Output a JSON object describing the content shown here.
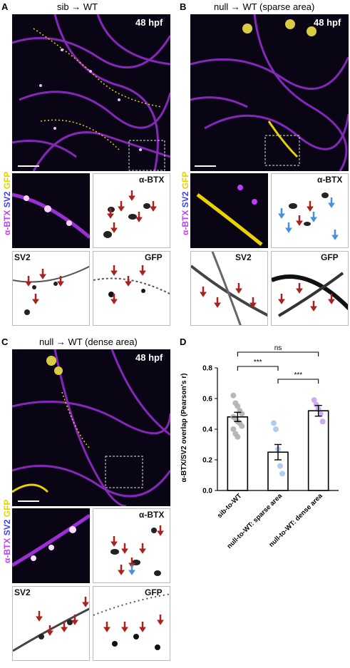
{
  "panels": {
    "A": {
      "letter": "A",
      "title": "sib → WT",
      "time": "48 hpf"
    },
    "B": {
      "letter": "B",
      "title": "null → WT (sparse area)",
      "time": "48 hpf"
    },
    "C": {
      "letter": "C",
      "title": "null → WT (dense area)",
      "time": "48 hpf"
    },
    "D": {
      "letter": "D"
    }
  },
  "stain": {
    "btx": "α-BTX",
    "sv2": "SV2",
    "gfp": "GFP"
  },
  "colors": {
    "btx": "#c13cff",
    "sv2": "#3a3aff",
    "gfp": "#e8d200",
    "red_arrow": "#a8231f",
    "blue_arrow": "#4a90d9"
  },
  "chart_data": {
    "type": "bar",
    "ylabel": "α-BTX/SV2 overlap (Pearson's r)",
    "ylim": [
      0,
      0.8
    ],
    "yticks": [
      "0.0",
      "0.2",
      "0.4",
      "0.6",
      "0.8"
    ],
    "categories": [
      "sib-to-WT",
      "null-to-WT: sparse area",
      "null-to-WT: dense area"
    ],
    "values": [
      0.48,
      0.25,
      0.52
    ],
    "sem": [
      0.03,
      0.05,
      0.035
    ],
    "point_colors": [
      "#b0b0b0",
      "#a8c8ee",
      "#c9a3ee"
    ],
    "points": [
      [
        0.62,
        0.57,
        0.55,
        0.52,
        0.5,
        0.48,
        0.47,
        0.45,
        0.44,
        0.42,
        0.4,
        0.37,
        0.35
      ],
      [
        0.44,
        0.4,
        0.27,
        0.16,
        0.11
      ],
      [
        0.59,
        0.56,
        0.53,
        0.5,
        0.45
      ]
    ],
    "significance": [
      {
        "pair": [
          0,
          2
        ],
        "label": "ns"
      },
      {
        "pair": [
          0,
          1
        ],
        "label": "***"
      },
      {
        "pair": [
          1,
          2
        ],
        "label": "***"
      }
    ]
  }
}
